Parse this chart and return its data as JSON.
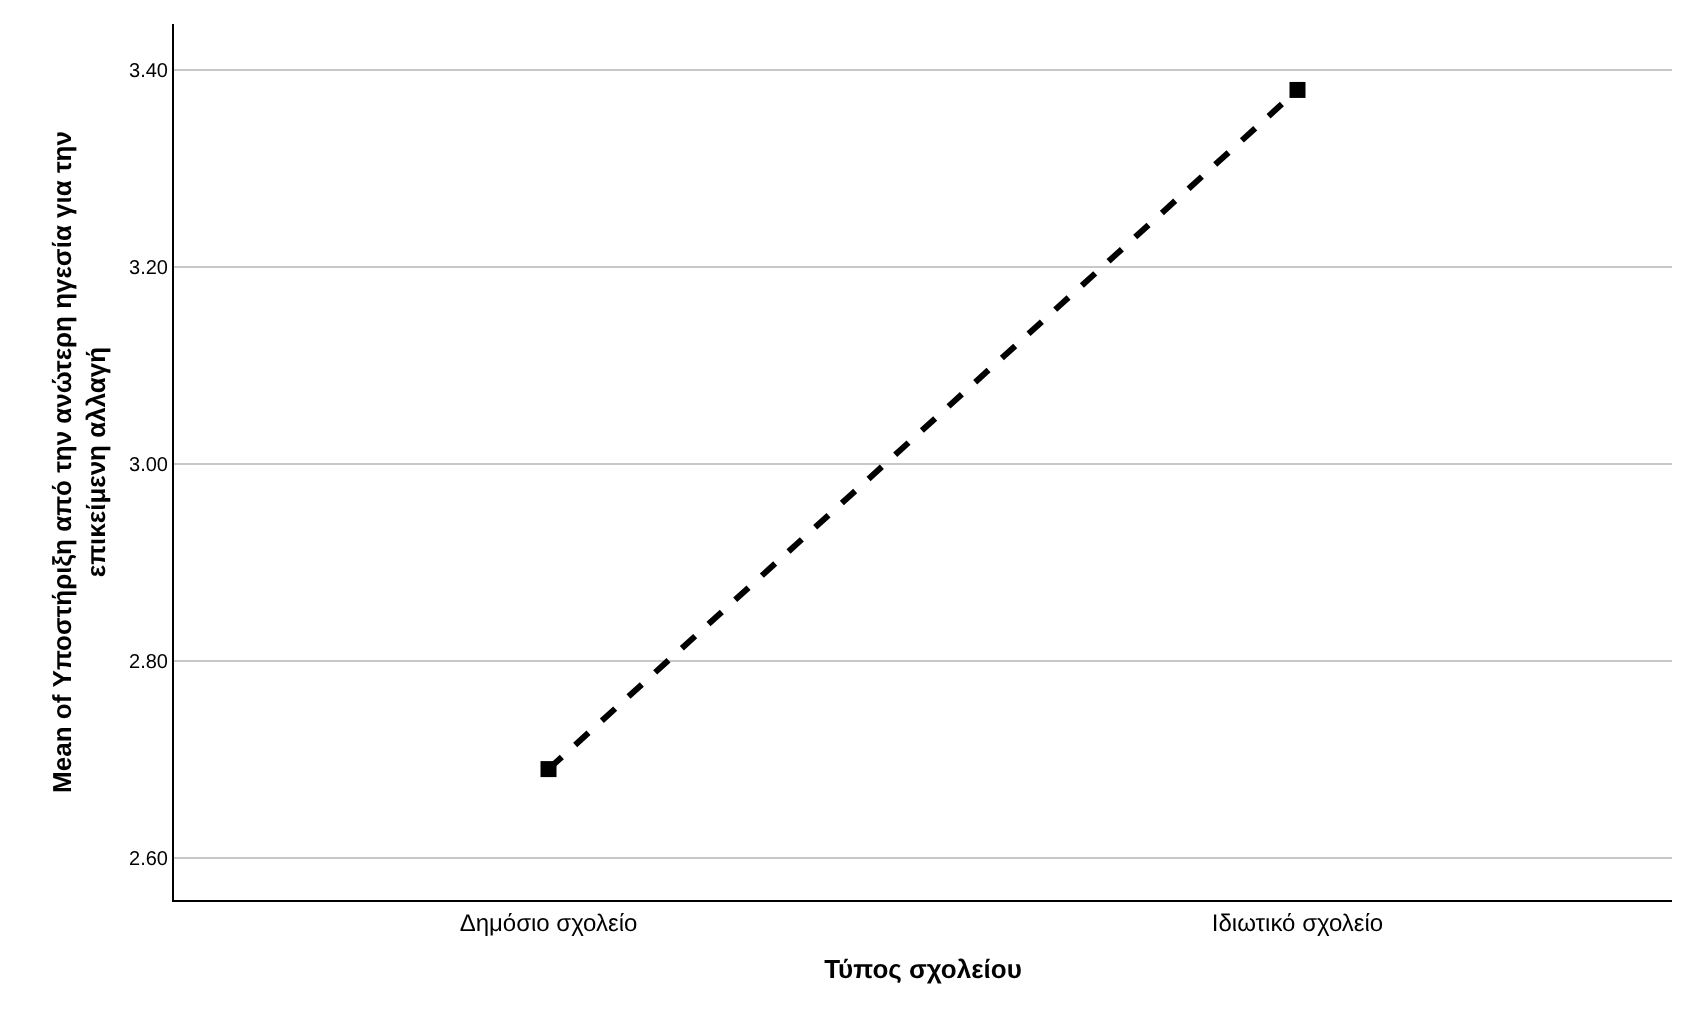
{
  "chart_data": {
    "type": "line",
    "xlabel": "Τύπος σχολείου",
    "ylabel": "Mean of Υποστήριξη από την ανώτερη ηγεσία για την\nεπικείμενη αλλαγή",
    "categories": [
      "Δημόσιο σχολείο",
      "Ιδιωτικό σχολείο"
    ],
    "series": [
      {
        "color": "#000000",
        "values": [
          2.69,
          3.38
        ]
      }
    ],
    "ylim": [
      2.557,
      3.447
    ],
    "yticks": [
      {
        "value": 2.6,
        "label": "2.60"
      },
      {
        "value": 2.8,
        "label": "2.80"
      },
      {
        "value": 3.0,
        "label": "3.00"
      },
      {
        "value": 3.2,
        "label": "3.20"
      },
      {
        "value": 3.4,
        "label": "3.40"
      }
    ],
    "grid": "y",
    "marker": "square",
    "line_style": "dashed",
    "legend": false
  }
}
